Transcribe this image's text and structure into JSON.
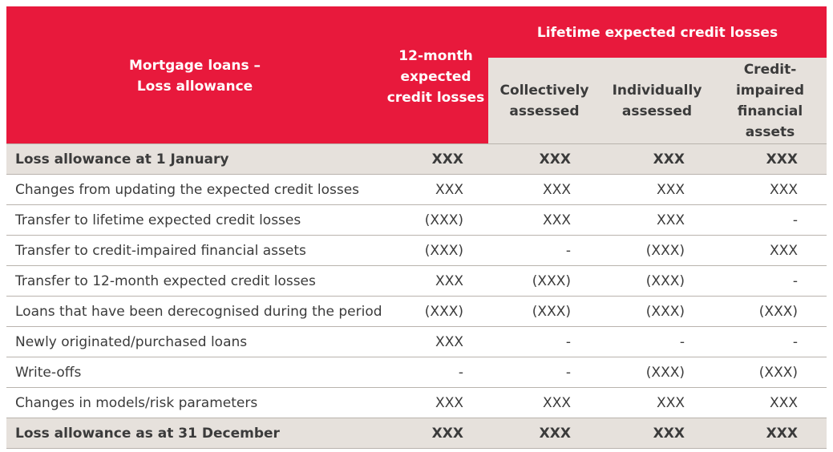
{
  "header": {
    "title_line1": "Mortgage loans –",
    "title_line2": "Loss allowance",
    "col_12m_line1": "12-month",
    "col_12m_line2": "expected",
    "col_12m_line3": "credit losses",
    "lifetime_title": "Lifetime expected credit losses",
    "sub_collective_line1": "Collectively",
    "sub_collective_line2": "assessed",
    "sub_individual_line1": "Individually",
    "sub_individual_line2": "assessed",
    "sub_impaired_line1": "Credit-",
    "sub_impaired_line2": "impaired",
    "sub_impaired_line3": "financial",
    "sub_impaired_line4": "assets"
  },
  "rows": [
    {
      "label": "Loss allowance at 1 January",
      "v": [
        "XXX",
        "XXX",
        "XXX",
        "XXX"
      ]
    },
    {
      "label": "Changes from updating the expected credit losses",
      "v": [
        "XXX",
        "XXX",
        "XXX",
        "XXX"
      ]
    },
    {
      "label": "Transfer to lifetime expected credit losses",
      "v": [
        "(XXX)",
        "XXX",
        "XXX",
        "-"
      ]
    },
    {
      "label": "Transfer to credit-impaired financial assets",
      "v": [
        "(XXX)",
        "-",
        "(XXX)",
        "XXX"
      ]
    },
    {
      "label": "Transfer to 12-month expected credit losses",
      "v": [
        "XXX",
        "(XXX)",
        "(XXX)",
        "-"
      ]
    },
    {
      "label": "Loans that have been derecognised during the period",
      "v": [
        "(XXX)",
        "(XXX)",
        "(XXX)",
        "(XXX)"
      ]
    },
    {
      "label": "Newly originated/purchased loans",
      "v": [
        "XXX",
        "-",
        "-",
        "-"
      ]
    },
    {
      "label": "Write-offs",
      "v": [
        "-",
        "-",
        "(XXX)",
        "(XXX)"
      ]
    },
    {
      "label": "Changes in models/risk parameters",
      "v": [
        "XXX",
        "XXX",
        "XXX",
        "XXX"
      ]
    },
    {
      "label": "Loss allowance as at 31 December",
      "v": [
        "XXX",
        "XXX",
        "XXX",
        "XXX"
      ]
    }
  ],
  "colors": {
    "header_red": "#e8193c",
    "subheader_beige": "#e6e1dc",
    "text": "#3b3b3b",
    "rule": "#b9b3ad"
  }
}
